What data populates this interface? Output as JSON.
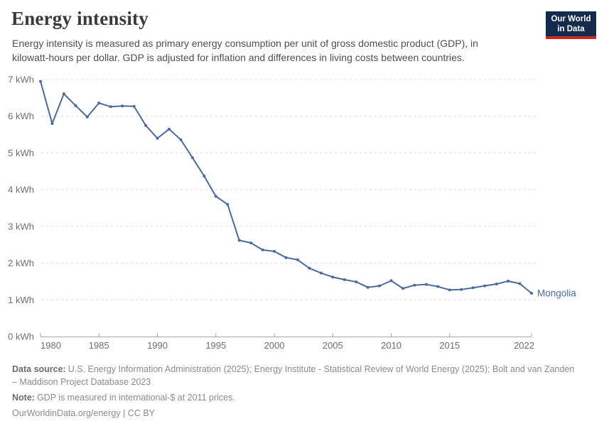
{
  "header": {
    "title": "Energy intensity",
    "subtitle": "Energy intensity is measured as primary energy consumption per unit of gross domestic product (GDP), in kilowatt-hours per dollar. GDP is adjusted for inflation and differences in living costs between countries.",
    "logo": {
      "line1": "Our World",
      "line2": "in Data",
      "bg_color": "#132B4D",
      "accent_color": "#D0281E"
    }
  },
  "chart_data": {
    "type": "line",
    "title": "Energy intensity",
    "xlabel": "",
    "ylabel": "kWh",
    "x": [
      1980,
      1981,
      1982,
      1983,
      1984,
      1985,
      1986,
      1987,
      1988,
      1989,
      1990,
      1991,
      1992,
      1993,
      1994,
      1995,
      1996,
      1997,
      1998,
      1999,
      2000,
      2001,
      2002,
      2003,
      2004,
      2005,
      2006,
      2007,
      2008,
      2009,
      2010,
      2011,
      2012,
      2013,
      2014,
      2015,
      2016,
      2017,
      2018,
      2019,
      2020,
      2021,
      2022
    ],
    "series": [
      {
        "name": "Mongolia",
        "color": "#4C6A9C",
        "values": [
          6.95,
          5.8,
          6.61,
          6.29,
          5.98,
          6.36,
          6.26,
          6.28,
          6.27,
          5.75,
          5.4,
          5.65,
          5.36,
          4.87,
          4.37,
          3.82,
          3.6,
          2.62,
          2.55,
          2.36,
          2.32,
          2.15,
          2.09,
          1.86,
          1.73,
          1.62,
          1.55,
          1.49,
          1.34,
          1.38,
          1.52,
          1.31,
          1.4,
          1.42,
          1.36,
          1.27,
          1.28,
          1.33,
          1.38,
          1.43,
          1.51,
          1.44,
          1.18
        ]
      }
    ],
    "ylim": [
      0,
      7
    ],
    "yticks": [
      0,
      1,
      2,
      3,
      4,
      5,
      6,
      7
    ],
    "ytick_suffix": " kWh",
    "xticks": [
      1980,
      1985,
      1990,
      1995,
      2000,
      2005,
      2010,
      2015,
      2022
    ],
    "grid": true,
    "legend_position": "end-of-line-label",
    "axis_color": "#a5a5a5",
    "grid_color": "#dcdcdc",
    "tick_label_color": "#6e6e6e"
  },
  "footer": {
    "data_source_label": "Data source:",
    "data_source": "U.S. Energy Information Administration (2025); Energy Institute - Statistical Review of World Energy (2025); Bolt and van Zanden – Maddison Project Database 2023",
    "note_label": "Note:",
    "note": "GDP is measured in international-$ at 2011 prices.",
    "license": "OurWorldinData.org/energy | CC BY"
  }
}
